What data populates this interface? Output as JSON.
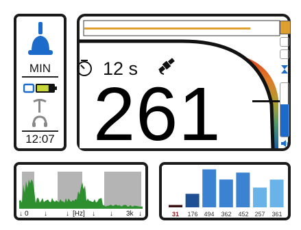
{
  "left_panel": {
    "mode_label": "MIN",
    "clock": "12:07",
    "icons": [
      "bell-icon",
      "battery-icon",
      "probe-icon",
      "headphones-icon"
    ],
    "battery_level": 0.7
  },
  "main_panel": {
    "seconds_label": "12 s",
    "main_value": "261",
    "slider_level": 0.85,
    "volume_level": 0.6,
    "icons": [
      "timer-icon",
      "satellite-icon",
      "lightning-icon",
      "speaker-icon"
    ]
  },
  "spectrum_panel": {
    "label_start": "0",
    "label_unit": "[Hz]",
    "label_end": "3k"
  },
  "bars_panel": {
    "values": [
      31,
      176,
      494,
      362,
      452,
      257,
      361
    ],
    "labels": [
      "31",
      "176",
      "494",
      "362",
      "452",
      "257",
      "361"
    ],
    "first_label_color": "#8b1a1a"
  },
  "colors": {
    "accent_blue": "#1c6ac9",
    "battery_green": "#c8d63a",
    "slider_orange": "#e0a030",
    "bar_dark": "#1f4f95",
    "bar_mid": "#3b82d0",
    "bar_light": "#6ab3e8"
  }
}
